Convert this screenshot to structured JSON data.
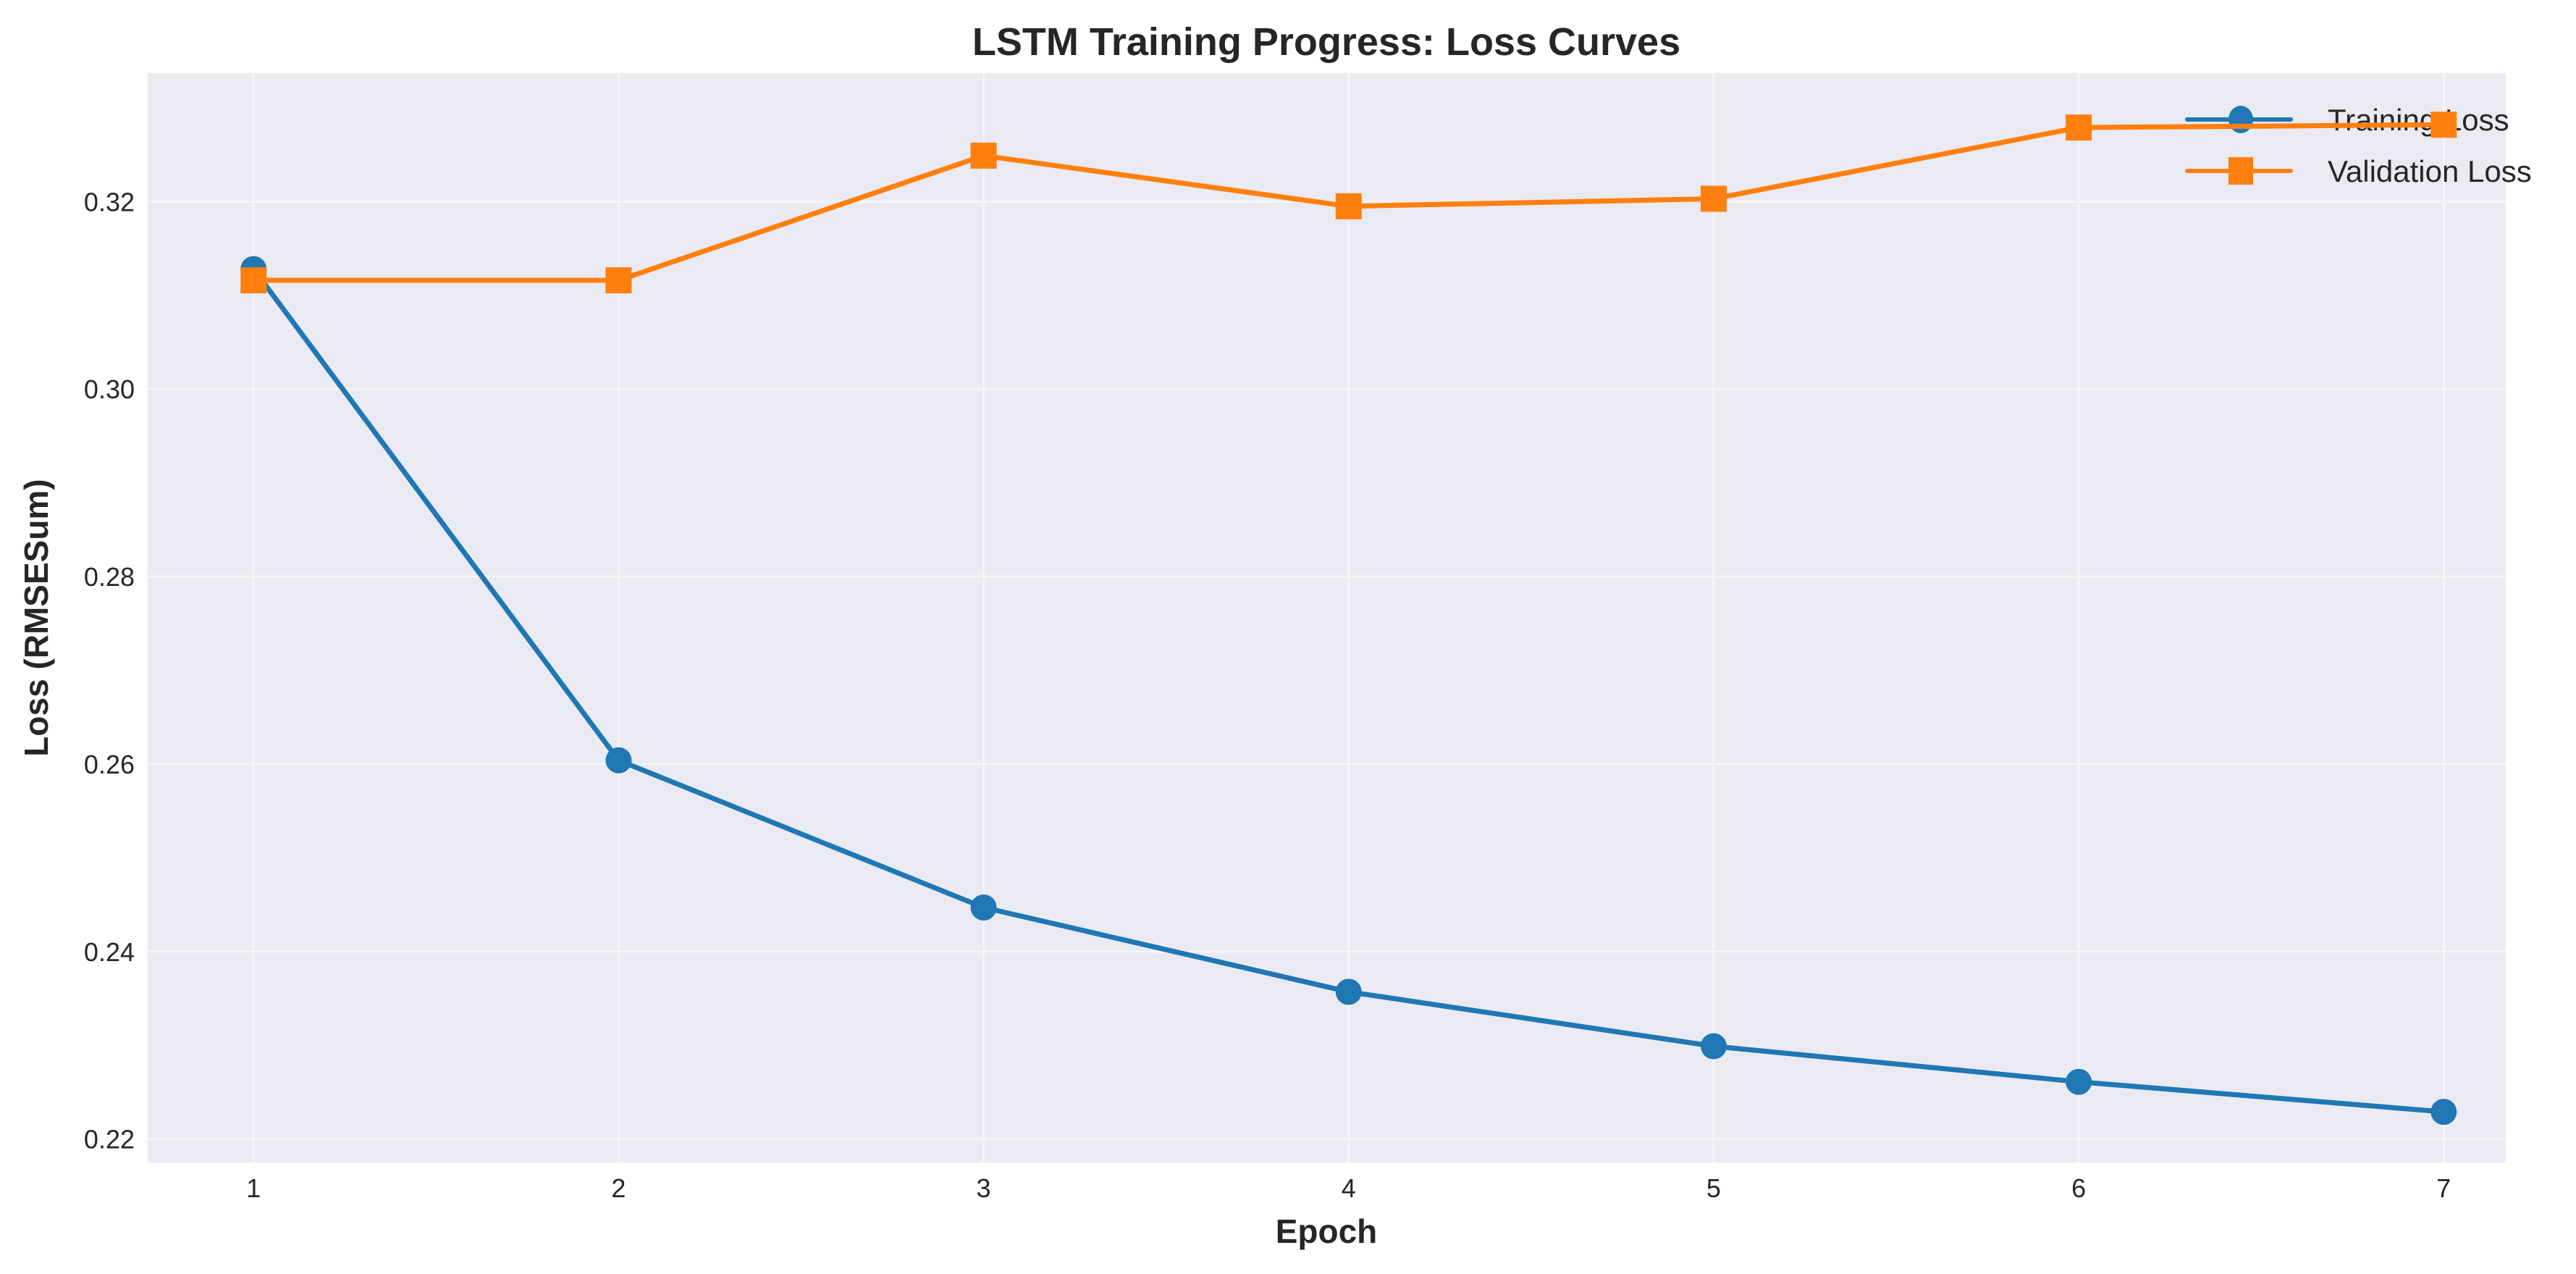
{
  "chart_data": {
    "type": "line",
    "title": "LSTM Training Progress: Loss Curves",
    "xlabel": "Epoch",
    "ylabel": "Loss (RMSESum)",
    "x": [
      1,
      2,
      3,
      4,
      5,
      6,
      7
    ],
    "xticks": [
      "1",
      "2",
      "3",
      "4",
      "5",
      "6",
      "7"
    ],
    "yticks": [
      "0.22",
      "0.24",
      "0.26",
      "0.28",
      "0.30",
      "0.32"
    ],
    "xlim": [
      0.71,
      7.17
    ],
    "ylim": [
      0.2175,
      0.3337
    ],
    "grid": true,
    "legend_position": "top-right",
    "series": [
      {
        "name": "Training Loss",
        "marker": "circle",
        "color": "#1f77b4",
        "values": [
          0.3128,
          0.2604,
          0.2447,
          0.2357,
          0.2299,
          0.2261,
          0.2229
        ]
      },
      {
        "name": "Validation Loss",
        "marker": "square",
        "color": "#ff7f0e",
        "values": [
          0.3116,
          0.3116,
          0.3249,
          0.3195,
          0.3203,
          0.3279,
          0.3282
        ]
      }
    ],
    "background_color": "#eaeaf2",
    "grid_color": "#f5f5f8"
  }
}
